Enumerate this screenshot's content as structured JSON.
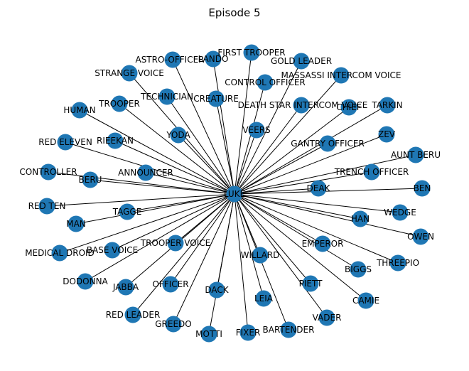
{
  "title": "Episode 5",
  "style": {
    "node_color": "#1f77b4",
    "edge_color": "#000000",
    "label_color": "#000000"
  },
  "center": "LUKE",
  "nodes": [
    "LUKE",
    "FIRST TROOPER",
    "LANDO",
    "GOLD LEADER",
    "ASTRO-OFFICER",
    "MASSASSI INTERCOM VOICE",
    "STRANGE VOICE",
    "CONTROL OFFICER",
    "TECHNICIAN",
    "CREATURE",
    "TROOPER",
    "TARKIN",
    "CHIEF",
    "DEATH STAR INTERCOM VOICE",
    "HUMAN",
    "VEERS",
    "ZEV",
    "RIEEKAN",
    "YODA",
    "RED ELEVEN",
    "GANTRY OFFICER",
    "AUNT BERU",
    "CONTROLLER",
    "ANNOUNCER",
    "TRENCH OFFICER",
    "BERU",
    "BEN",
    "DEAK",
    "RED TEN",
    "TAGGE",
    "WEDGE",
    "HAN",
    "MAN",
    "OWEN",
    "TROOPER VOICE",
    "EMPEROR",
    "BASE VOICE",
    "MEDICAL DROID",
    "WILLARD",
    "THREEPIO",
    "BIGGS",
    "DODONNA",
    "JABBA",
    "OFFICER",
    "PIETT",
    "DACK",
    "LEIA",
    "CAMIE",
    "RED LEADER",
    "VADER",
    "GREEDO",
    "BARTENDER",
    "FIXER",
    "MOTTI"
  ]
}
